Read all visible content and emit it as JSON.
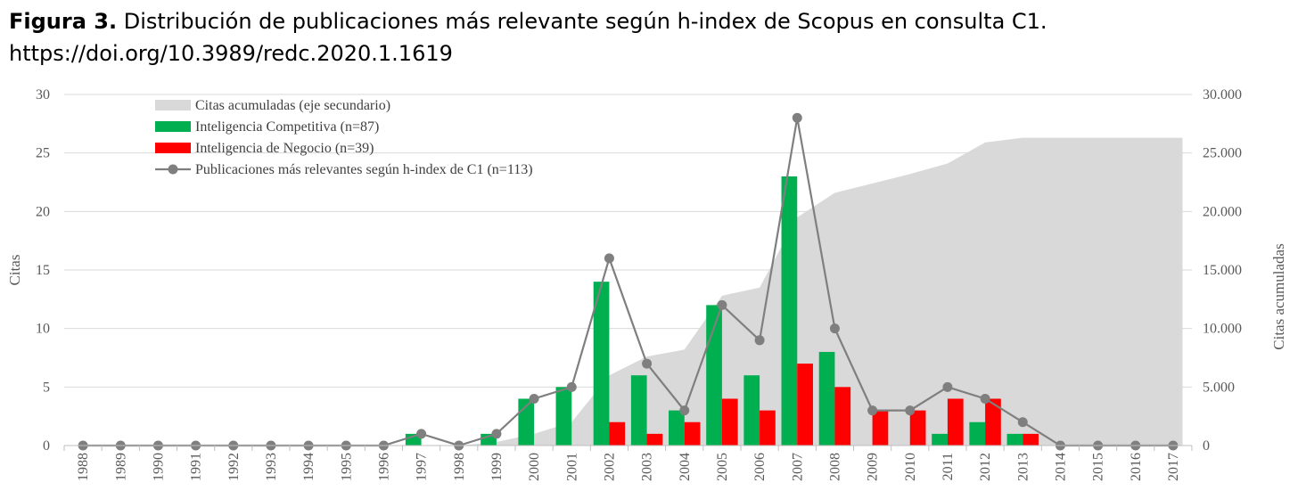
{
  "caption": {
    "label": "Figura 3.",
    "text": " Distribución de publicaciones más relevante según h-index de Scopus en consulta C1.",
    "doi": "https://doi.org/10.3989/redc.2020.1.1619"
  },
  "chart_data": {
    "type": "bar",
    "categories": [
      "1988",
      "1989",
      "1990",
      "1991",
      "1992",
      "1993",
      "1994",
      "1995",
      "1996",
      "1997",
      "1998",
      "1999",
      "2000",
      "2001",
      "2002",
      "2003",
      "2004",
      "2005",
      "2006",
      "2007",
      "2008",
      "2009",
      "2010",
      "2011",
      "2012",
      "2013",
      "2014",
      "2015",
      "2016",
      "2017"
    ],
    "ylabel": "Citas",
    "y2label": "Citas acumuladas",
    "ylim": [
      0,
      30
    ],
    "y2lim": [
      0,
      30000
    ],
    "yticks": [
      "0",
      "5",
      "10",
      "15",
      "20",
      "25",
      "30"
    ],
    "y2ticks": [
      "0",
      "5.000",
      "10.000",
      "15.000",
      "20.000",
      "25.000",
      "30.000"
    ],
    "grid": true,
    "legend_position": "top-left",
    "series": [
      {
        "name": "Citas acumuladas (eje secundario)",
        "kind": "area",
        "axis": "secondary",
        "color": "#d9d9d9",
        "values": [
          0,
          0,
          0,
          0,
          0,
          0,
          0,
          0,
          0,
          0,
          0,
          300,
          1000,
          2000,
          6000,
          7600,
          8200,
          12800,
          13500,
          19500,
          21600,
          22400,
          23200,
          24100,
          25900,
          26300,
          26300,
          26300,
          26300,
          26300
        ]
      },
      {
        "name": "Inteligencia Competitiva (n=87)",
        "kind": "bar",
        "color": "#00b050",
        "values": [
          0,
          0,
          0,
          0,
          0,
          0,
          0,
          0,
          0,
          1,
          0,
          1,
          4,
          5,
          14,
          6,
          3,
          12,
          6,
          23,
          8,
          0,
          0,
          1,
          2,
          1,
          0,
          0,
          0,
          0
        ]
      },
      {
        "name": "Inteligencia de Negocio (n=39)",
        "kind": "bar",
        "color": "#ff0000",
        "values": [
          0,
          0,
          0,
          0,
          0,
          0,
          0,
          0,
          0,
          0,
          0,
          0,
          0,
          0,
          2,
          1,
          2,
          4,
          3,
          7,
          5,
          3,
          3,
          4,
          4,
          1,
          0,
          0,
          0,
          0
        ]
      },
      {
        "name": "Publicaciones más relevantes según h-index de C1 (n=113)",
        "kind": "line",
        "color": "#7f7f7f",
        "values": [
          0,
          0,
          0,
          0,
          0,
          0,
          0,
          0,
          0,
          1,
          0,
          1,
          4,
          5,
          16,
          7,
          3,
          12,
          9,
          28,
          10,
          3,
          3,
          5,
          4,
          2,
          0,
          0,
          0,
          0
        ]
      }
    ]
  }
}
